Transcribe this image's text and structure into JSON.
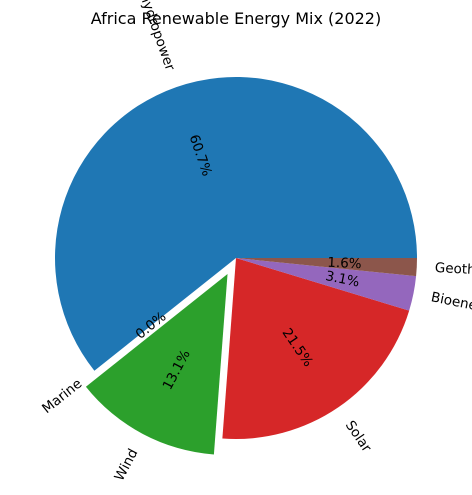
{
  "chart_data": {
    "type": "pie",
    "title": "Africa Renewable Energy Mix (2022)",
    "slices": [
      {
        "label": "Renewable hydropower",
        "value": 60.7,
        "pct_label": "60.7%",
        "color": "#1f77b4",
        "exploded": false
      },
      {
        "label": "Marine",
        "value": 0.0,
        "pct_label": "0.0%",
        "color": "#ff7f0e",
        "exploded": false
      },
      {
        "label": "Wind",
        "value": 13.1,
        "pct_label": "13.1%",
        "color": "#2ca02c",
        "exploded": true
      },
      {
        "label": "Solar",
        "value": 21.5,
        "pct_label": "21.5%",
        "color": "#d62728",
        "exploded": false
      },
      {
        "label": "Bioenergy",
        "value": 3.1,
        "pct_label": "3.1%",
        "color": "#9467bd",
        "exploded": false
      },
      {
        "label": "Geothermal",
        "value": 1.6,
        "pct_label": "1.6%",
        "color": "#8c564b",
        "exploded": false
      }
    ],
    "start_angle": 0,
    "direction": "counterclockwise",
    "rotate_labels": true
  }
}
